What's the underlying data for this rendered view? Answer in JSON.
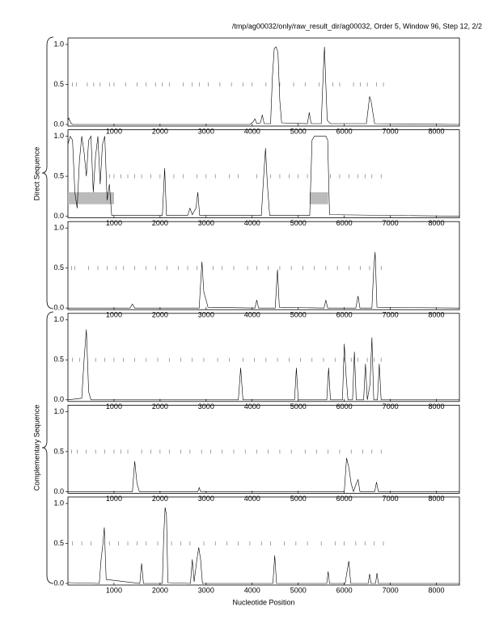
{
  "header": "/tmp/ag00032/only/raw_result_dir/ag00032, Order 5, Window 96, Step 12, 2/2",
  "y_group_labels": [
    "Direct Sequence",
    "Complementary Sequence"
  ],
  "chart_data": [
    {
      "type": "line",
      "color": "#000000",
      "xlim": [
        0,
        8500
      ],
      "ylim": [
        0,
        1
      ],
      "xticks": [
        1000,
        2000,
        3000,
        4000,
        5000,
        6000,
        7000,
        8000
      ],
      "yticks": [
        {
          "value": 0,
          "label": "0.0"
        },
        {
          "value": 0.5,
          "label": "0.5"
        },
        {
          "value": 1,
          "label": "1.0"
        }
      ],
      "x": [
        0,
        20,
        60,
        100,
        3950,
        4020,
        4060,
        4100,
        4180,
        4220,
        4260,
        4400,
        4440,
        4480,
        4520,
        4560,
        4600,
        4640,
        5200,
        5240,
        5280,
        5500,
        5540,
        5570,
        5600,
        5630,
        5700,
        6480,
        6520,
        6550,
        6580,
        6620,
        6660,
        8500
      ],
      "values": [
        0.05,
        0.08,
        0.02,
        0,
        0,
        0.03,
        0.07,
        0.01,
        0.02,
        0.12,
        0.01,
        0.01,
        0.6,
        0.95,
        0.97,
        0.9,
        0.3,
        0.02,
        0.01,
        0.15,
        0.01,
        0.01,
        0.6,
        0.97,
        0.5,
        0.05,
        0.01,
        0.01,
        0.2,
        0.35,
        0.3,
        0.15,
        0.01,
        0
      ],
      "markers_y": 0.5,
      "markers": [
        100,
        180,
        420,
        560,
        700,
        900,
        1000,
        1250,
        1500,
        1700,
        1900,
        2050,
        2200,
        2500,
        2700,
        2850,
        3050,
        3300,
        3550,
        3800,
        4000,
        4300,
        4600,
        4900,
        5150,
        5450,
        5750,
        5900,
        6200,
        6350,
        6500,
        6700,
        6850
      ]
    },
    {
      "type": "line",
      "color": "#000000",
      "xlim": [
        0,
        8500
      ],
      "ylim": [
        0,
        1
      ],
      "xticks": [
        1000,
        2000,
        3000,
        4000,
        5000,
        6000,
        7000,
        8000
      ],
      "yticks": [
        {
          "value": 0,
          "label": "0.0"
        },
        {
          "value": 0.5,
          "label": "0.5"
        },
        {
          "value": 1,
          "label": "1.0"
        }
      ],
      "x": [
        0,
        50,
        100,
        150,
        200,
        250,
        300,
        350,
        400,
        450,
        500,
        550,
        600,
        650,
        700,
        750,
        800,
        850,
        900,
        950,
        2050,
        2100,
        2140,
        2600,
        2650,
        2700,
        2780,
        2820,
        2860,
        4200,
        4250,
        4290,
        4330,
        4380,
        5250,
        5300,
        5350,
        5600,
        5640,
        5680,
        8500
      ],
      "values": [
        0.9,
        1.0,
        0.95,
        0.3,
        0.1,
        0.7,
        1.0,
        0.8,
        0.5,
        0.95,
        1.0,
        0.3,
        0.75,
        1.0,
        0.4,
        0.9,
        1.0,
        0.2,
        0.4,
        0.01,
        0.01,
        0.6,
        0.01,
        0.01,
        0.1,
        0.02,
        0.1,
        0.3,
        0.01,
        0.01,
        0.5,
        0.85,
        0.4,
        0.01,
        0.01,
        0.95,
        1.0,
        1.0,
        0.95,
        0.02,
        0
      ],
      "markers_y": 0.5,
      "markers": [
        900,
        1000,
        1150,
        1300,
        1450,
        1600,
        1800,
        2000,
        2300,
        2500,
        2800,
        3000,
        3200,
        3500,
        3700,
        4100,
        4400,
        4600,
        4800,
        5000,
        5200,
        5700,
        5900,
        6100,
        6300,
        6450,
        6600,
        6800
      ],
      "highlight_regions": [
        {
          "x": [
            0,
            1000
          ],
          "y": [
            0.15,
            0.3
          ]
        },
        {
          "x": [
            5250,
            5650
          ],
          "y": [
            0.15,
            0.3
          ]
        }
      ]
    },
    {
      "type": "line",
      "color": "#000000",
      "xlim": [
        0,
        8500
      ],
      "ylim": [
        0,
        1
      ],
      "xticks": [
        1000,
        2000,
        3000,
        4000,
        5000,
        6000,
        7000,
        8000
      ],
      "yticks": [
        {
          "value": 0,
          "label": "0.0"
        },
        {
          "value": 0.5,
          "label": "0.5"
        },
        {
          "value": 1,
          "label": "1.0"
        }
      ],
      "x": [
        0,
        1350,
        1400,
        1450,
        2850,
        2880,
        2910,
        2950,
        3000,
        3040,
        4060,
        4100,
        4140,
        4500,
        4550,
        4590,
        5560,
        5600,
        5640,
        6250,
        6300,
        6340,
        6600,
        6640,
        6670,
        6710,
        8500
      ],
      "values": [
        0,
        0,
        0.05,
        0,
        0,
        0.3,
        0.58,
        0.2,
        0.1,
        0.01,
        0,
        0.1,
        0,
        0,
        0.48,
        0.01,
        0,
        0.1,
        0,
        0,
        0.15,
        0,
        0,
        0.5,
        0.7,
        0.01,
        0
      ],
      "markers_y": 0.5,
      "markers": [
        80,
        150,
        450,
        650,
        850,
        1050,
        1200,
        1450,
        1700,
        1900,
        2150,
        2400,
        2600,
        2800,
        3150,
        3350,
        3600,
        3900,
        4100,
        4350,
        4600,
        4850,
        5100,
        5350,
        5600,
        5850,
        6100,
        6350,
        6550,
        6800
      ],
      "label": ""
    },
    {
      "type": "line",
      "color": "#000000",
      "xlim": [
        0,
        8500
      ],
      "ylim": [
        0,
        1
      ],
      "xticks": [
        1000,
        2000,
        3000,
        4000,
        5000,
        6000,
        7000,
        8000
      ],
      "yticks": [
        {
          "value": 0,
          "label": "0.0"
        },
        {
          "value": 0.5,
          "label": "0.5"
        },
        {
          "value": 1,
          "label": "1.0"
        }
      ],
      "x": [
        0,
        300,
        350,
        400,
        450,
        500,
        3700,
        3750,
        3800,
        4920,
        4960,
        5000,
        5620,
        5660,
        5700,
        5960,
        6000,
        6040,
        6080,
        6180,
        6220,
        6260,
        6420,
        6460,
        6500,
        6560,
        6600,
        6640,
        6720,
        6760,
        6800,
        8500
      ],
      "values": [
        0,
        0.02,
        0.5,
        0.88,
        0.1,
        0,
        0,
        0.4,
        0,
        0,
        0.4,
        0,
        0,
        0.4,
        0,
        0,
        0.7,
        0.3,
        0,
        0,
        0.6,
        0,
        0,
        0.45,
        0,
        0.2,
        0.78,
        0,
        0,
        0.45,
        0,
        0
      ],
      "markers_y": 0.5,
      "markers": [
        100,
        250,
        600,
        800,
        1000,
        1200,
        1450,
        1700,
        1950,
        2200,
        2450,
        2700,
        2950,
        3250,
        3500,
        3800,
        4050,
        4300,
        4550,
        4800,
        5050,
        5300,
        5550,
        5800,
        6000,
        6150,
        6300,
        6500,
        6650,
        6800
      ],
      "label": ""
    },
    {
      "type": "line",
      "color": "#000000",
      "xlim": [
        0,
        8500
      ],
      "ylim": [
        0,
        1
      ],
      "xticks": [
        1000,
        2000,
        3000,
        4000,
        5000,
        6000,
        7000,
        8000
      ],
      "yticks": [
        {
          "value": 0,
          "label": "0.0"
        },
        {
          "value": 0.5,
          "label": "0.5"
        },
        {
          "value": 1,
          "label": "1.0"
        }
      ],
      "x": [
        0,
        1400,
        1450,
        1500,
        1550,
        2820,
        2850,
        2880,
        6000,
        6050,
        6100,
        6150,
        6200,
        6260,
        6300,
        6340,
        6660,
        6700,
        6740,
        8500
      ],
      "values": [
        0,
        0,
        0.38,
        0.1,
        0,
        0,
        0.05,
        0,
        0,
        0.42,
        0.3,
        0.1,
        0,
        0.1,
        0.15,
        0,
        0,
        0.12,
        0,
        0
      ],
      "markers_y": 0.5,
      "markers": [
        80,
        200,
        400,
        600,
        800,
        1000,
        1150,
        1300,
        1600,
        1800,
        2000,
        2200,
        2450,
        2650,
        2900,
        3100,
        3350,
        3600,
        3850,
        4100,
        4350,
        4600,
        4850,
        5150,
        5400,
        5650,
        5900,
        6150,
        6400,
        6600,
        6800
      ],
      "label": ""
    },
    {
      "type": "line",
      "color": "#000000",
      "xlim": [
        0,
        8500
      ],
      "ylim": [
        0,
        1
      ],
      "xticks": [
        1000,
        2000,
        3000,
        4000,
        5000,
        6000,
        7000,
        8000
      ],
      "yticks": [
        {
          "value": 0,
          "label": "0.0"
        },
        {
          "value": 0.5,
          "label": "0.5"
        },
        {
          "value": 1,
          "label": "1.0"
        }
      ],
      "x": [
        0,
        680,
        720,
        760,
        790,
        830,
        1560,
        1600,
        1640,
        2050,
        2080,
        2110,
        2140,
        2170,
        2660,
        2700,
        2740,
        2800,
        2840,
        2880,
        2920,
        4450,
        4490,
        4530,
        5620,
        5650,
        5680,
        6020,
        6060,
        6100,
        6140,
        6520,
        6550,
        6580,
        6680,
        6710,
        6740,
        8500
      ],
      "values": [
        0.01,
        0,
        0.3,
        0.5,
        0.7,
        0.05,
        0,
        0.25,
        0,
        0,
        0.6,
        0.95,
        0.85,
        0.01,
        0,
        0.3,
        0.02,
        0.3,
        0.45,
        0.3,
        0,
        0,
        0.35,
        0,
        0,
        0.15,
        0,
        0,
        0.15,
        0.28,
        0,
        0,
        0.12,
        0,
        0,
        0.13,
        0,
        0
      ],
      "markers_y": 0.5,
      "markers": [
        100,
        300,
        500,
        900,
        1100,
        1300,
        1500,
        1700,
        1950,
        2250,
        2450,
        2650,
        2950,
        3200,
        3450,
        3700,
        3950,
        4200,
        4400,
        4700,
        4950,
        5200,
        5500,
        5800,
        6000,
        6250,
        6450,
        6650,
        6850
      ],
      "xlabel": "Nucleotide Position"
    }
  ]
}
